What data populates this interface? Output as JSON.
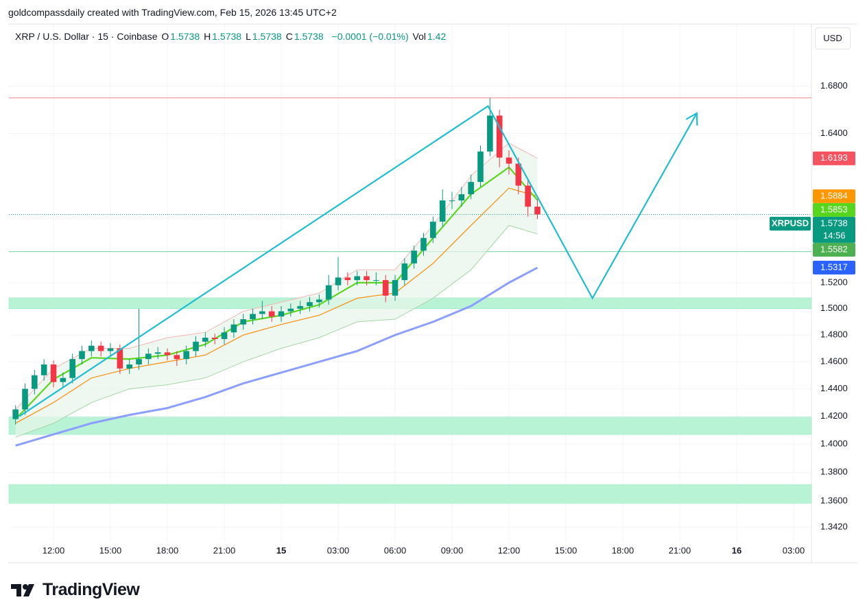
{
  "header": {
    "credit": "goldcompassdaily created with TradingView.com, Feb 15, 2026 13:45 UTC+2",
    "symbol": "XRP / U.S. Dollar · 15 · Coinbase",
    "ohlc": [
      {
        "k": "O",
        "v": "1.5738"
      },
      {
        "k": "H",
        "v": "1.5738"
      },
      {
        "k": "L",
        "v": "1.5738"
      },
      {
        "k": "C",
        "v": "1.5738"
      }
    ],
    "change": "−0.0001 (−0.01%)",
    "vol_label": "Vol",
    "vol": "1.42",
    "currency": "USD",
    "brand": "TradingView"
  },
  "chart_data": {
    "type": "candlestick",
    "log_scale": true,
    "grid": true,
    "up_color": "#089981",
    "down_color": "#f23645",
    "xlim": [
      9.65,
      51.94
    ],
    "ylim": [
      1.3318,
      1.734
    ],
    "xticks": [
      {
        "value": 12,
        "label": "12:00"
      },
      {
        "value": 15,
        "label": "15:00"
      },
      {
        "value": 18,
        "label": "18:00"
      },
      {
        "value": 21,
        "label": "21:00"
      },
      {
        "value": 24,
        "label": "15",
        "bold": true
      },
      {
        "value": 27,
        "label": "03:00"
      },
      {
        "value": 30,
        "label": "06:00"
      },
      {
        "value": 33,
        "label": "09:00"
      },
      {
        "value": 36,
        "label": "12:00"
      },
      {
        "value": 39,
        "label": "15:00"
      },
      {
        "value": 42,
        "label": "18:00"
      },
      {
        "value": 45,
        "label": "21:00"
      },
      {
        "value": 48,
        "label": "16",
        "bold": true
      },
      {
        "value": 51,
        "label": "03:00"
      }
    ],
    "yticks": [
      {
        "value": 1.68,
        "label": "1.6800"
      },
      {
        "value": 1.64,
        "label": "1.6400"
      },
      {
        "value": 1.52,
        "label": "1.5200"
      },
      {
        "value": 1.5,
        "label": "1.5000"
      },
      {
        "value": 1.48,
        "label": "1.4800"
      },
      {
        "value": 1.46,
        "label": "1.4600"
      },
      {
        "value": 1.44,
        "label": "1.4400"
      },
      {
        "value": 1.42,
        "label": "1.4200"
      },
      {
        "value": 1.4,
        "label": "1.4000"
      },
      {
        "value": 1.38,
        "label": "1.3800"
      },
      {
        "value": 1.36,
        "label": "1.3600"
      },
      {
        "value": 1.342,
        "label": "1.3420"
      }
    ],
    "x": [
      10,
      10.5,
      11,
      11.5,
      12,
      12.5,
      13,
      13.5,
      14,
      14.5,
      15,
      15.5,
      16,
      16.5,
      17,
      17.5,
      18,
      18.5,
      19,
      19.5,
      20,
      20.5,
      21,
      21.5,
      22,
      22.5,
      23,
      23.5,
      24,
      24.5,
      25,
      25.5,
      26,
      26.5,
      27,
      27.5,
      28,
      28.5,
      29,
      29.5,
      30,
      30.5,
      31,
      31.5,
      32,
      32.5,
      33,
      33.5,
      34,
      34.5,
      35,
      35.5,
      36,
      36.5,
      37,
      37.5
    ],
    "open": [
      1.418,
      1.425,
      1.44,
      1.45,
      1.458,
      1.445,
      1.448,
      1.462,
      1.468,
      1.472,
      1.468,
      1.47,
      1.455,
      1.458,
      1.462,
      1.466,
      1.467,
      1.465,
      1.462,
      1.468,
      1.475,
      1.478,
      1.477,
      1.482,
      1.488,
      1.492,
      1.496,
      1.498,
      1.494,
      1.498,
      1.5,
      1.502,
      1.505,
      1.507,
      1.518,
      1.524,
      1.522,
      1.525,
      1.522,
      1.522,
      1.51,
      1.522,
      1.535,
      1.545,
      1.555,
      1.568,
      1.585,
      1.585,
      1.59,
      1.6,
      1.625,
      1.655,
      1.62,
      1.615,
      1.597,
      1.58
    ],
    "high": [
      1.428,
      1.444,
      1.454,
      1.462,
      1.461,
      1.452,
      1.466,
      1.472,
      1.476,
      1.475,
      1.474,
      1.473,
      1.462,
      1.5,
      1.47,
      1.471,
      1.47,
      1.468,
      1.472,
      1.479,
      1.482,
      1.481,
      1.486,
      1.492,
      1.496,
      1.5,
      1.506,
      1.502,
      1.502,
      1.504,
      1.506,
      1.509,
      1.511,
      1.526,
      1.54,
      1.528,
      1.529,
      1.529,
      1.528,
      1.526,
      1.526,
      1.539,
      1.549,
      1.559,
      1.572,
      1.594,
      1.592,
      1.596,
      1.606,
      1.63,
      1.67,
      1.66,
      1.626,
      1.62,
      1.602,
      1.586
    ],
    "low": [
      1.414,
      1.421,
      1.436,
      1.446,
      1.441,
      1.441,
      1.444,
      1.458,
      1.464,
      1.464,
      1.464,
      1.451,
      1.451,
      1.454,
      1.458,
      1.462,
      1.461,
      1.457,
      1.458,
      1.464,
      1.471,
      1.473,
      1.473,
      1.478,
      1.484,
      1.488,
      1.492,
      1.49,
      1.49,
      1.494,
      1.496,
      1.498,
      1.501,
      1.503,
      1.514,
      1.518,
      1.518,
      1.518,
      1.518,
      1.505,
      1.506,
      1.518,
      1.531,
      1.541,
      1.551,
      1.564,
      1.578,
      1.58,
      1.586,
      1.596,
      1.621,
      1.612,
      1.606,
      1.59,
      1.572,
      1.57
    ],
    "close": [
      1.425,
      1.44,
      1.45,
      1.458,
      1.445,
      1.448,
      1.462,
      1.468,
      1.472,
      1.468,
      1.47,
      1.455,
      1.458,
      1.462,
      1.466,
      1.467,
      1.465,
      1.462,
      1.468,
      1.475,
      1.478,
      1.477,
      1.482,
      1.488,
      1.492,
      1.496,
      1.498,
      1.494,
      1.498,
      1.5,
      1.502,
      1.505,
      1.507,
      1.518,
      1.524,
      1.522,
      1.525,
      1.522,
      1.522,
      1.51,
      1.522,
      1.535,
      1.545,
      1.555,
      1.568,
      1.585,
      1.585,
      1.59,
      1.6,
      1.625,
      1.655,
      1.62,
      1.615,
      1.597,
      1.58,
      1.5738
    ],
    "indicator_x": [
      10,
      12,
      14,
      16,
      18,
      20,
      22,
      24,
      26,
      28,
      30,
      32,
      34,
      36,
      37.5
    ],
    "band": {
      "fill": "#e8f5e9",
      "upper": {
        "color": "#f5b5b5",
        "values": [
          1.425,
          1.455,
          1.47,
          1.47,
          1.478,
          1.482,
          1.498,
          1.505,
          1.512,
          1.53,
          1.53,
          1.565,
          1.605,
          1.632,
          1.6193
        ]
      },
      "lower": {
        "color": "#a5d6a7",
        "values": [
          1.405,
          1.415,
          1.43,
          1.44,
          1.443,
          1.448,
          1.46,
          1.47,
          1.478,
          1.49,
          1.492,
          1.508,
          1.53,
          1.565,
          1.5582
        ]
      }
    },
    "indicators": [
      {
        "color": "#8c9eff",
        "width": 3,
        "values": [
          1.399,
          1.407,
          1.415,
          1.421,
          1.426,
          1.434,
          1.444,
          1.452,
          1.46,
          1.468,
          1.48,
          1.49,
          1.502,
          1.52,
          1.5317
        ]
      },
      {
        "color": "#f7931a",
        "width": 1.3,
        "values": [
          1.415,
          1.43,
          1.448,
          1.455,
          1.46,
          1.465,
          1.48,
          1.488,
          1.495,
          1.508,
          1.512,
          1.535,
          1.565,
          1.595,
          1.5884
        ]
      },
      {
        "color": "#5bd61e",
        "width": 2.2,
        "values": [
          1.418,
          1.447,
          1.463,
          1.462,
          1.465,
          1.473,
          1.49,
          1.495,
          1.503,
          1.52,
          1.52,
          1.555,
          1.59,
          1.612,
          1.5853
        ]
      }
    ],
    "levels": [
      {
        "value": 1.67,
        "color": "#f08a8a"
      },
      {
        "value": 1.5442,
        "color": "#6fd3a4"
      }
    ],
    "zones": [
      {
        "from": 1.5,
        "to": 1.5083
      },
      {
        "from": 1.4069,
        "to": 1.4194
      },
      {
        "from": 1.3585,
        "to": 1.3715
      }
    ],
    "zone_color": "#b9f3d6",
    "drawing": {
      "color": "#1fbcd2",
      "x": [
        10.2,
        34.9,
        40.4,
        45.9
      ],
      "y": [
        1.42,
        1.663,
        1.508,
        1.657
      ]
    },
    "current": {
      "value": 1.5738,
      "label": "1.5738",
      "symbol": "XRPUSD",
      "countdown": "14:56",
      "color": "#089981"
    },
    "price_labels": [
      {
        "value": 1.6193,
        "label": "1.6193",
        "color": "#f7525f"
      },
      {
        "value": 1.5884,
        "label": "1.5884",
        "color": "#ff9800"
      },
      {
        "value": 1.5853,
        "label": "1.5853",
        "color": "#57d61e"
      },
      {
        "value": 1.5582,
        "label": "1.5582",
        "color": "#4caf50"
      },
      {
        "value": 1.5317,
        "label": "1.5317",
        "color": "#2962ff"
      }
    ]
  }
}
